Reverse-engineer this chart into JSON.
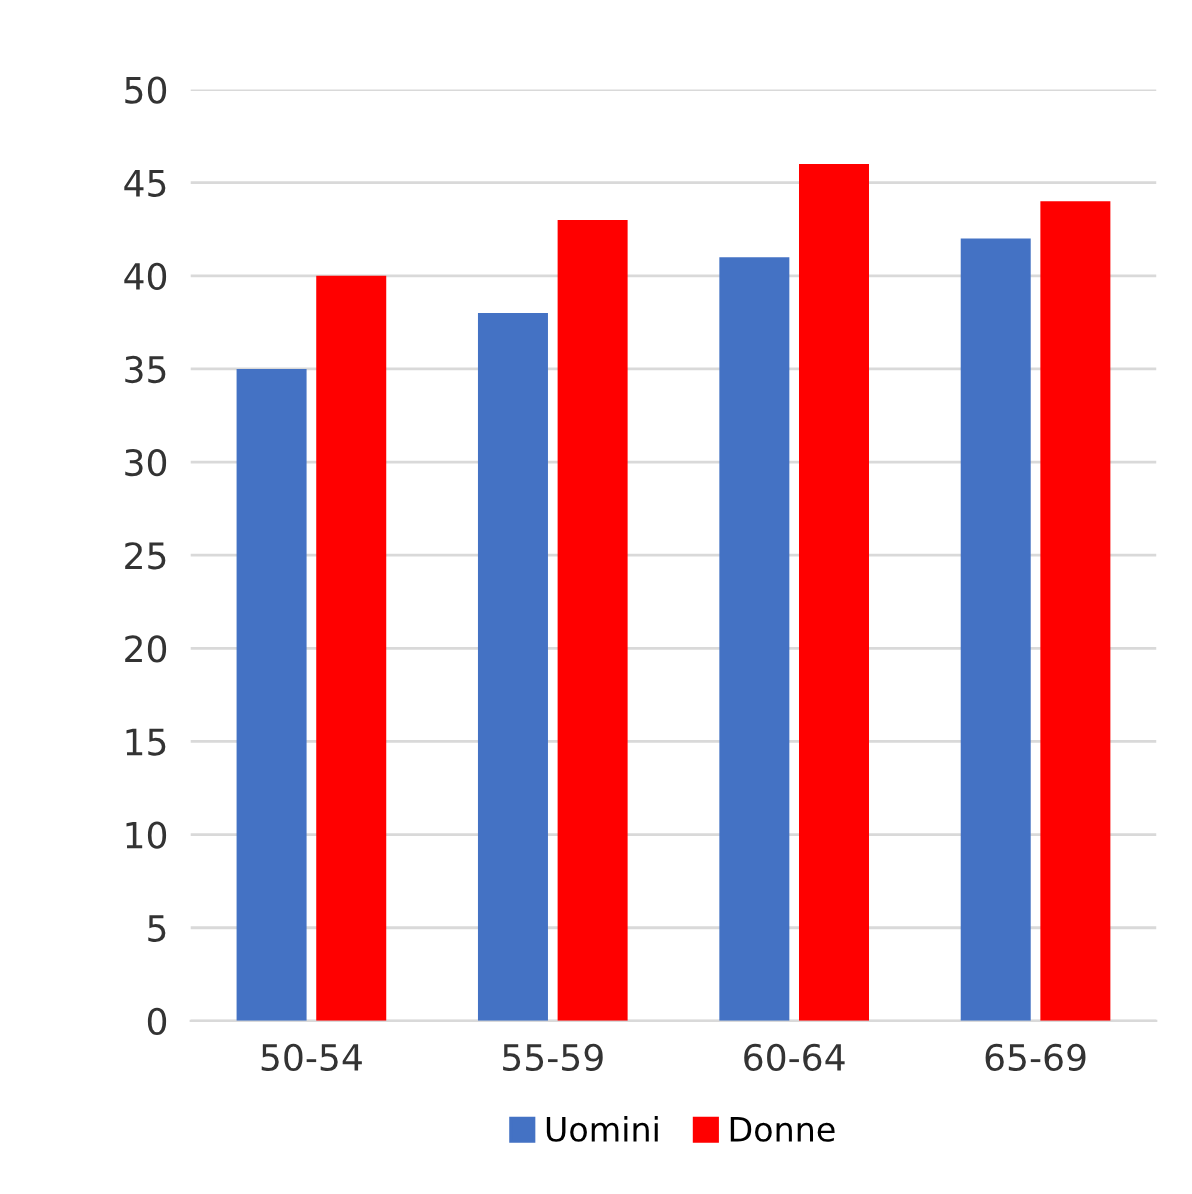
{
  "chart_data": {
    "type": "bar",
    "categories": [
      "50-54",
      "55-59",
      "60-64",
      "65-69"
    ],
    "series": [
      {
        "name": "Uomini",
        "color": "#4472c4",
        "values": [
          35,
          38,
          41,
          42
        ]
      },
      {
        "name": "Donne",
        "color": "#ff0000",
        "values": [
          40,
          43,
          46,
          44
        ]
      }
    ],
    "ylim": [
      0,
      50
    ],
    "yticks": [
      0,
      5,
      10,
      15,
      20,
      25,
      30,
      35,
      40,
      45,
      50
    ],
    "grid": "y",
    "legend": "bottom"
  }
}
